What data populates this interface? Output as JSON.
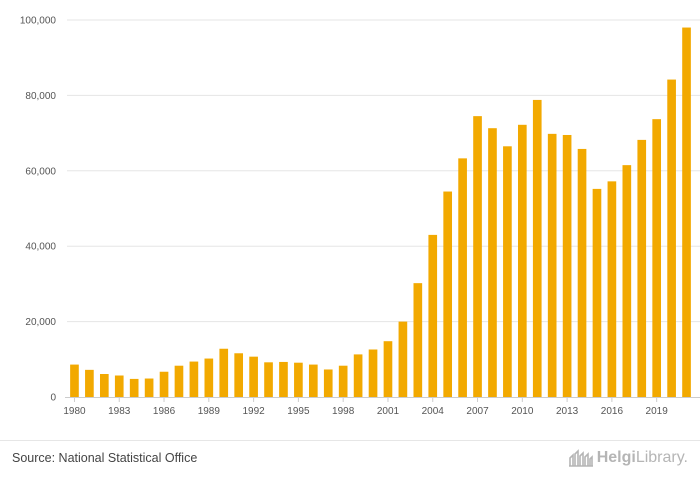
{
  "chart_data": {
    "type": "bar",
    "title": "",
    "xlabel": "",
    "ylabel": "",
    "ylim": [
      0,
      100000
    ],
    "grid": true,
    "bar_color": "#f2a900",
    "y_ticks": [
      0,
      20000,
      40000,
      60000,
      80000,
      100000
    ],
    "y_tick_labels": [
      "0",
      "20,000",
      "40,000",
      "60,000",
      "80,000",
      "100,000"
    ],
    "x_tick_labels": [
      "1980",
      "1983",
      "1986",
      "1989",
      "1992",
      "1995",
      "1998",
      "2001",
      "2004",
      "2007",
      "2010",
      "2013",
      "2016",
      "2019"
    ],
    "categories": [
      "1980",
      "1981",
      "1982",
      "1983",
      "1984",
      "1985",
      "1986",
      "1987",
      "1988",
      "1989",
      "1990",
      "1991",
      "1992",
      "1993",
      "1994",
      "1995",
      "1996",
      "1997",
      "1998",
      "1999",
      "2000",
      "2001",
      "2002",
      "2003",
      "2004",
      "2005",
      "2006",
      "2007",
      "2008",
      "2009",
      "2010",
      "2011",
      "2012",
      "2013",
      "2014",
      "2015",
      "2016",
      "2017",
      "2018",
      "2019",
      "2020",
      "2021"
    ],
    "values": [
      8600,
      7200,
      6100,
      5700,
      4800,
      4900,
      6700,
      8300,
      9400,
      10200,
      12800,
      11600,
      10700,
      9200,
      9300,
      9100,
      8600,
      7300,
      8300,
      11300,
      12600,
      14800,
      20000,
      30200,
      43000,
      54500,
      63300,
      74500,
      71300,
      66500,
      72200,
      78800,
      69800,
      69500,
      65800,
      55200,
      57200,
      61500,
      68200,
      73700,
      84200,
      98000
    ]
  },
  "footer": {
    "source": "Source: National Statistical Office",
    "brand_strong": "Helgi",
    "brand_light": "Library."
  },
  "colors": {
    "grid": "#e5e5e5",
    "axis": "#cccccc"
  }
}
